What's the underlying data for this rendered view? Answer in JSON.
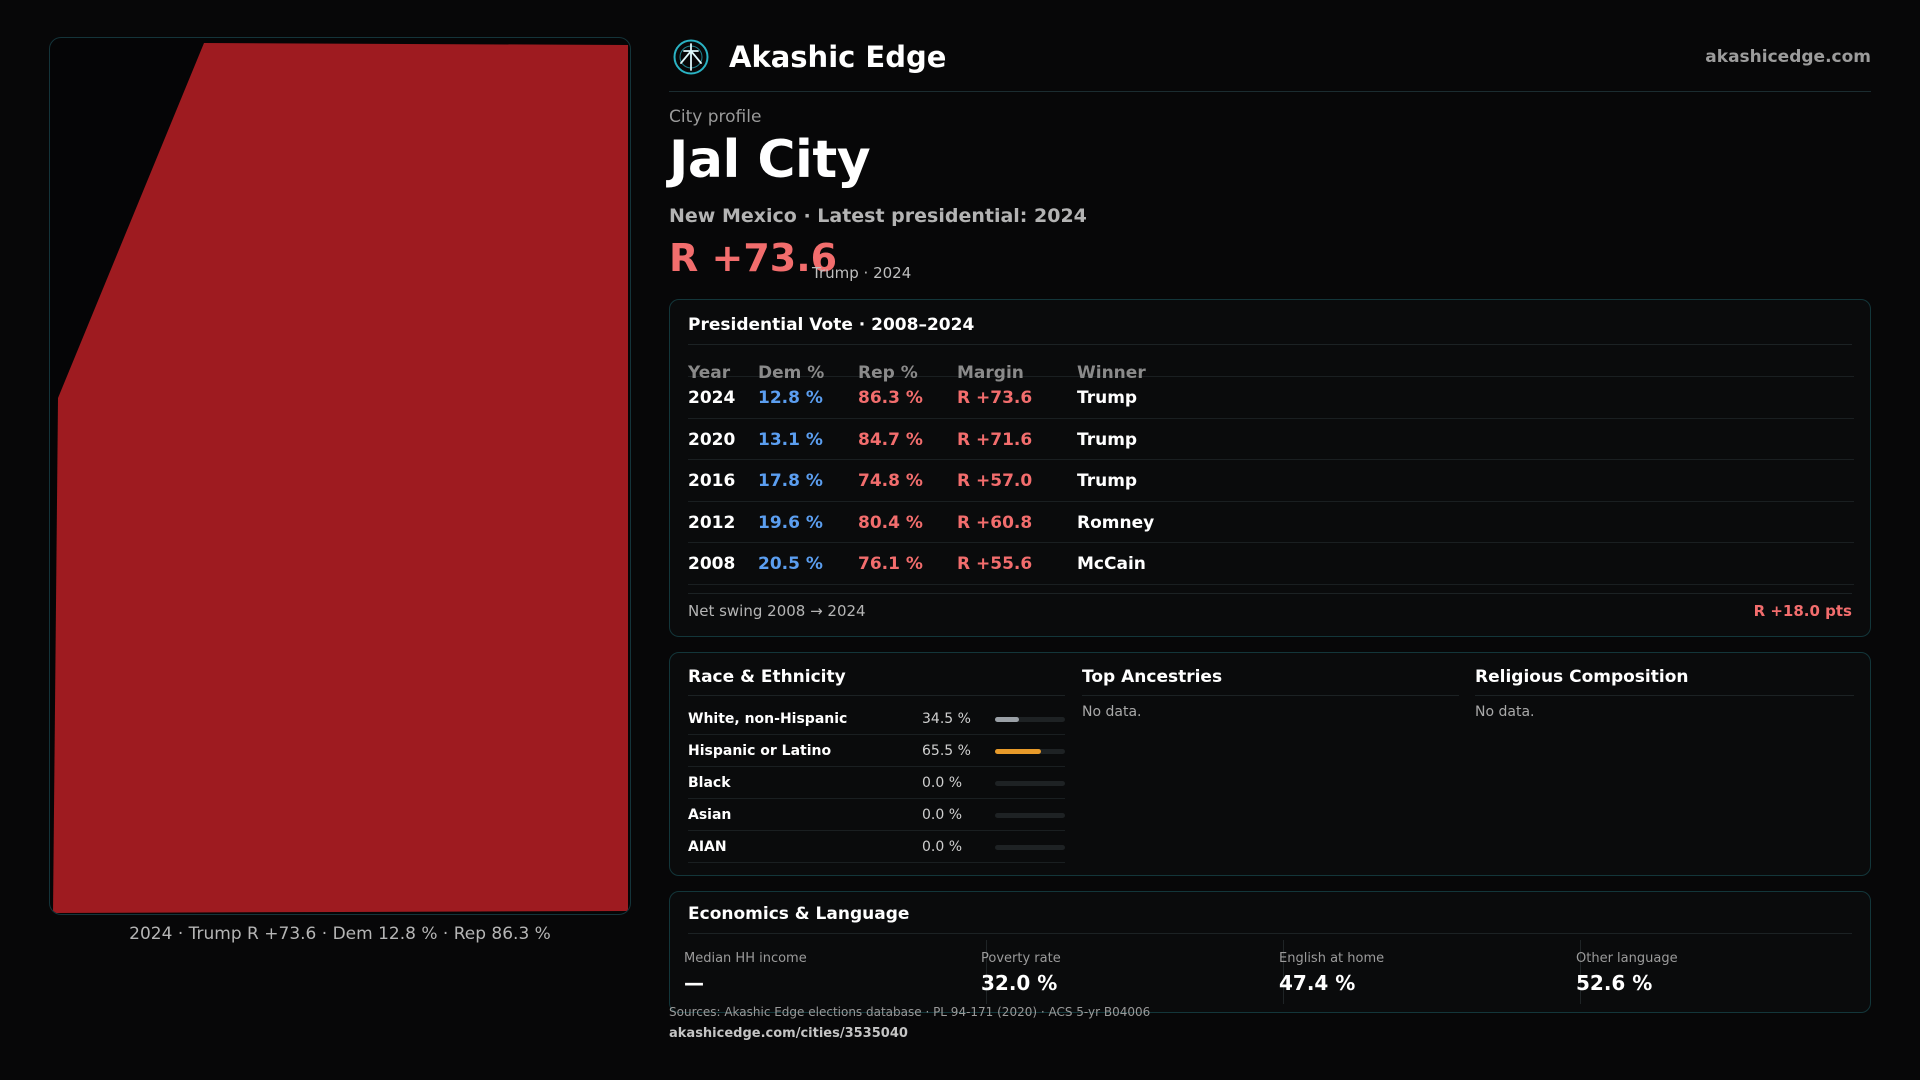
{
  "brand": {
    "name": "Akashic Edge",
    "url": "akashicedge.com"
  },
  "colors": {
    "rep": "#f26d6d",
    "dem": "#5b9ef0",
    "map_fill": "#9e1b20",
    "accent": "#2ab3c4"
  },
  "profile": {
    "eyebrow": "City profile",
    "title": "Jal City",
    "subtitle": "New Mexico · Latest presidential: 2024",
    "margin": "R +73.6",
    "margin_sub": "Trump · 2024"
  },
  "map": {
    "caption": "2024 · Trump R +73.6 · Dem 12.8 % · Rep 86.3 %"
  },
  "vote": {
    "title": "Presidential Vote · 2008–2024",
    "headers": {
      "year": "Year",
      "dem": "Dem %",
      "rep": "Rep %",
      "margin": "Margin",
      "winner": "Winner"
    },
    "rows": [
      {
        "year": "2024",
        "dem": "12.8 %",
        "rep": "86.3 %",
        "margin": "R +73.6",
        "winner": "Trump"
      },
      {
        "year": "2020",
        "dem": "13.1 %",
        "rep": "84.7 %",
        "margin": "R +71.6",
        "winner": "Trump"
      },
      {
        "year": "2016",
        "dem": "17.8 %",
        "rep": "74.8 %",
        "margin": "R +57.0",
        "winner": "Trump"
      },
      {
        "year": "2012",
        "dem": "19.6 %",
        "rep": "80.4 %",
        "margin": "R +60.8",
        "winner": "Romney"
      },
      {
        "year": "2008",
        "dem": "20.5 %",
        "rep": "76.1 %",
        "margin": "R +55.6",
        "winner": "McCain"
      }
    ],
    "swing_label": "Net swing 2008 → 2024",
    "swing_value": "R +18.0 pts"
  },
  "race": {
    "title": "Race & Ethnicity",
    "rows": [
      {
        "label": "White, non-Hispanic",
        "pct": "34.5 %",
        "fraction": 0.345,
        "color": "#9aa0a6"
      },
      {
        "label": "Hispanic or Latino",
        "pct": "65.5 %",
        "fraction": 0.655,
        "color": "#e79a2a"
      },
      {
        "label": "Black",
        "pct": "0.0 %",
        "fraction": 0,
        "color": "#9aa0a6"
      },
      {
        "label": "Asian",
        "pct": "0.0 %",
        "fraction": 0,
        "color": "#9aa0a6"
      },
      {
        "label": "AIAN",
        "pct": "0.0 %",
        "fraction": 0,
        "color": "#9aa0a6"
      }
    ]
  },
  "ancestry": {
    "title": "Top Ancestries",
    "empty": "No data."
  },
  "religion": {
    "title": "Religious Composition",
    "empty": "No data."
  },
  "econ": {
    "title": "Economics & Language",
    "stats": [
      {
        "label": "Median HH income",
        "value": "—"
      },
      {
        "label": "Poverty rate",
        "value": "32.0 %"
      },
      {
        "label": "English at home",
        "value": "47.4 %"
      },
      {
        "label": "Other language",
        "value": "52.6 %"
      }
    ]
  },
  "footer": {
    "sources": "Sources: Akashic Edge elections database · PL 94-171 (2020) · ACS 5-yr B04006",
    "page_url": "akashicedge.com/cities/3535040"
  }
}
